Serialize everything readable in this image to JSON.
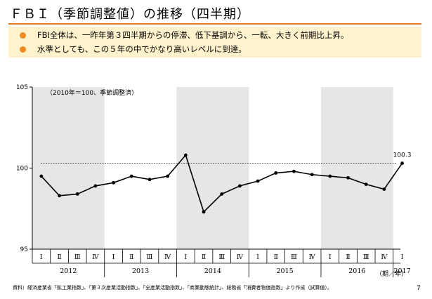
{
  "title": "ＦＢＩ（季節調整値）の推移（四半期）",
  "bullets": [
    "FBI全体は、一昨年第３四半期からの停滞、低下基調から、一転、大きく前期比上昇。",
    "水準としても、この５年の中でかなり高いレベルに到達。"
  ],
  "source": "資料）経済産業省「鉱工業指数」、「第３次産業活動指数」、「全産業活動指数」、「商業動態統計」、総務省「消費者物価指数」より作成（試算値）。",
  "page_number": "7",
  "colors": {
    "accent": "#e07a1f",
    "bullet_bg": "#fff2cc",
    "band": "#e6e6e6"
  },
  "chart_data": {
    "type": "line",
    "note": "（2010年＝100、季節調整済）",
    "axis_unit": "（期／年）",
    "ylim": [
      95,
      105
    ],
    "yticks": [
      95,
      100,
      105
    ],
    "quarters": [
      "Ⅰ",
      "Ⅱ",
      "Ⅲ",
      "Ⅳ",
      "Ⅰ",
      "Ⅱ",
      "Ⅲ",
      "Ⅳ",
      "Ⅰ",
      "Ⅱ",
      "Ⅲ",
      "Ⅳ",
      "Ⅰ",
      "Ⅱ",
      "Ⅲ",
      "Ⅳ",
      "Ⅰ",
      "Ⅱ",
      "Ⅲ",
      "Ⅳ",
      "Ⅰ"
    ],
    "years": [
      "2012",
      "2013",
      "2014",
      "2015",
      "2016",
      "2017"
    ],
    "values": [
      99.5,
      98.3,
      98.4,
      98.9,
      99.1,
      99.5,
      99.3,
      99.5,
      100.8,
      97.3,
      98.4,
      98.9,
      99.2,
      99.7,
      99.8,
      99.6,
      99.5,
      99.4,
      99.0,
      98.7,
      100.3
    ],
    "reference_line": 100.3,
    "last_label": "100.3",
    "grid": false,
    "shaded_years": [
      "2012",
      "2014",
      "2016"
    ]
  }
}
